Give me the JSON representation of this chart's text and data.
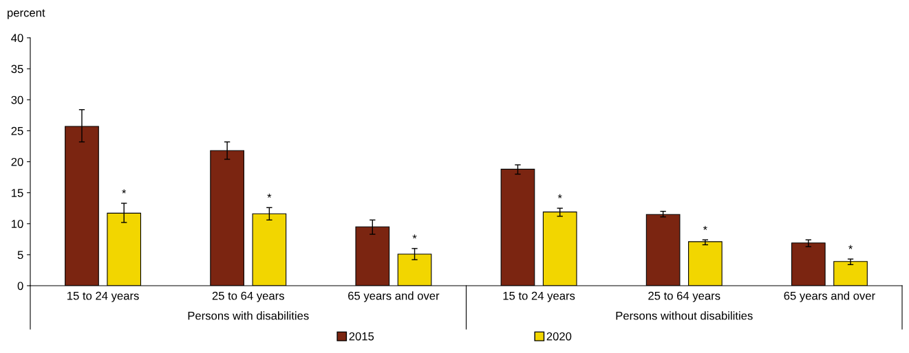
{
  "chart_data": {
    "type": "bar",
    "ylabel": "percent",
    "categories": [
      "15 to 24 years",
      "25 to 64 years",
      "65 years and over",
      "15 to 24 years",
      "25 to 64 years",
      "65 years and over"
    ],
    "annotations": [
      "Persons with disabilities",
      "Persons without disabilities"
    ],
    "series": [
      {
        "name": "2015",
        "color": "#7b2511",
        "values": [
          25.7,
          21.8,
          9.5,
          18.8,
          11.5,
          6.9
        ],
        "errors": [
          [
            23.2,
            28.4
          ],
          [
            20.4,
            23.2
          ],
          [
            8.3,
            10.6
          ],
          [
            18.0,
            19.5
          ],
          [
            11.1,
            12.0
          ],
          [
            6.3,
            7.4
          ]
        ]
      },
      {
        "name": "2020",
        "color": "#f2d600",
        "values": [
          11.7,
          11.6,
          5.1,
          11.9,
          7.1,
          3.9
        ],
        "errors": [
          [
            10.2,
            13.3
          ],
          [
            10.6,
            12.6
          ],
          [
            4.2,
            6.0
          ],
          [
            11.2,
            12.5
          ],
          [
            6.6,
            7.4
          ],
          [
            3.4,
            4.3
          ]
        ],
        "value_labels": [
          "*",
          "*",
          "*",
          "*",
          "*",
          "*"
        ]
      }
    ],
    "ylim": [
      0,
      40
    ],
    "yticks": [
      0,
      5,
      10,
      15,
      20,
      25,
      30,
      35,
      40
    ],
    "grid": false,
    "legend": "bottom"
  }
}
